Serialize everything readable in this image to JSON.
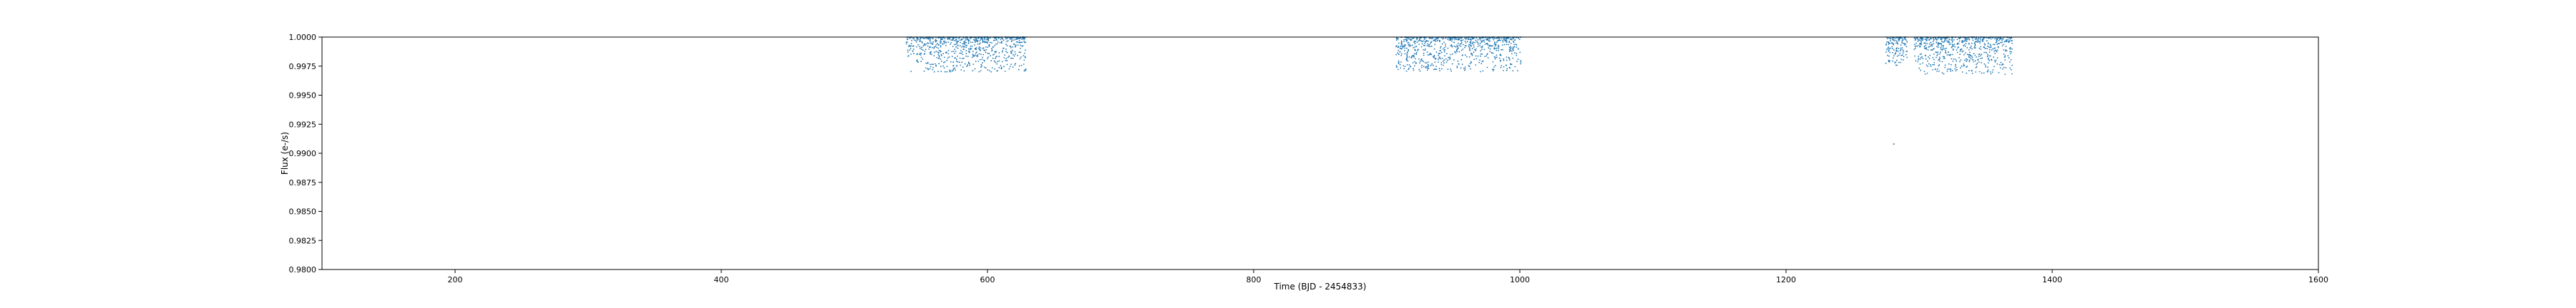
{
  "chart_data": {
    "type": "scatter",
    "title": "",
    "xlabel": "Time (BJD - 2454833)",
    "ylabel": "Flux (e-/s)",
    "xlim": [
      100,
      1600
    ],
    "ylim": [
      0.98,
      1.0
    ],
    "xticks": [
      200,
      400,
      600,
      800,
      1000,
      1200,
      1400,
      1600
    ],
    "xtick_labels": [
      "200",
      "400",
      "600",
      "800",
      "1000",
      "1200",
      "1400",
      "1600"
    ],
    "yticks": [
      0.98,
      0.9825,
      0.985,
      0.9875,
      0.99,
      0.9925,
      0.995,
      0.9975,
      1.0
    ],
    "ytick_labels": [
      "0.9800",
      "0.9825",
      "0.9850",
      "0.9875",
      "0.9900",
      "0.9925",
      "0.9950",
      "0.9975",
      "1.0000"
    ],
    "grid": false,
    "marker_color": "#1f77b4",
    "series": [
      {
        "segments": [
          {
            "x_range": [
              539,
              629
            ],
            "y_min": 0.997,
            "y_max": 1.0
          },
          {
            "x_range": [
              907,
              1001
            ],
            "y_min": 0.997,
            "y_max": 1.0
          },
          {
            "x_range": [
              1275,
              1291
            ],
            "y_min": 0.9975,
            "y_max": 1.0
          },
          {
            "x_range": [
              1296,
              1370
            ],
            "y_min": 0.9968,
            "y_max": 1.0
          }
        ],
        "outliers": [
          {
            "x": 1281,
            "y": 0.9908
          }
        ]
      }
    ]
  }
}
